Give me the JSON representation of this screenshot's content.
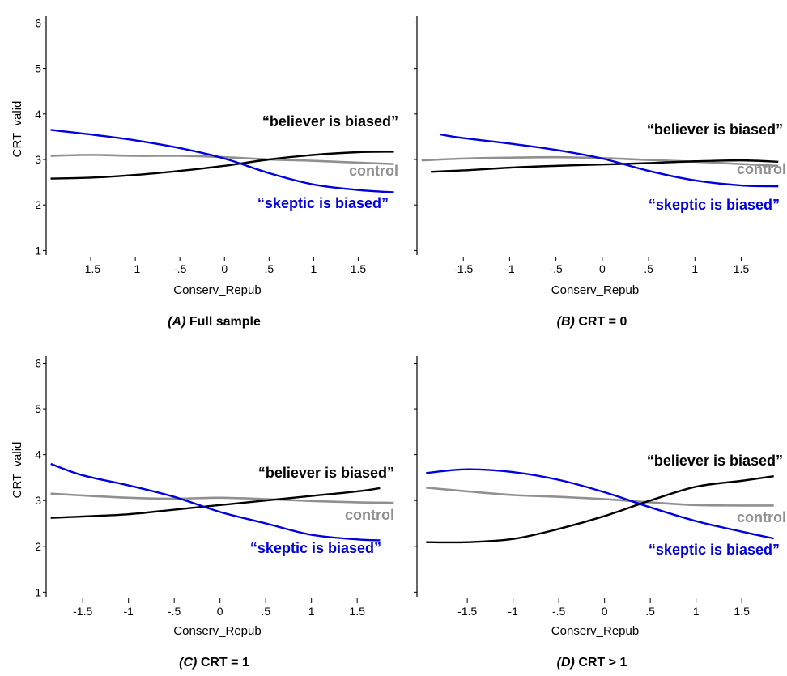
{
  "chart_data": [
    {
      "type": "line",
      "caption_label": "(A)",
      "caption_text": "Full sample",
      "xlabel": "Conserv_Repub",
      "ylabel": "CRT_valid",
      "xlim": [
        -2.0,
        1.95
      ],
      "ylim": [
        0.9,
        6.15
      ],
      "x_ticks": [
        -1.5,
        -1,
        -0.5,
        0,
        0.5,
        1,
        1.5
      ],
      "x_tick_labels": [
        "-1.5",
        "-1",
        "-.5",
        "0",
        ".5",
        "1",
        "1.5"
      ],
      "y_ticks": [
        1,
        2,
        3,
        4,
        5,
        6
      ],
      "y_tick_labels": [
        "1",
        "2",
        "3",
        "4",
        "5",
        "6"
      ],
      "series": [
        {
          "name": "control",
          "color": "#909090",
          "x": [
            -1.95,
            -1.5,
            -1,
            -0.5,
            0,
            0.5,
            1,
            1.5,
            1.9
          ],
          "y": [
            3.08,
            3.1,
            3.08,
            3.08,
            3.05,
            3.0,
            2.97,
            2.93,
            2.9
          ]
        },
        {
          "name": "“believer is biased”",
          "color": "#000000",
          "x": [
            -1.95,
            -1.5,
            -1,
            -0.5,
            0,
            0.5,
            1,
            1.5,
            1.9
          ],
          "y": [
            2.58,
            2.6,
            2.66,
            2.75,
            2.86,
            3.0,
            3.1,
            3.16,
            3.17
          ]
        },
        {
          "name": "“skeptic is biased”",
          "color": "#0000dd",
          "x": [
            -1.95,
            -1.5,
            -1,
            -0.5,
            0,
            0.5,
            1,
            1.5,
            1.9
          ],
          "y": [
            3.65,
            3.55,
            3.42,
            3.25,
            3.02,
            2.7,
            2.45,
            2.33,
            2.28
          ]
        }
      ]
    },
    {
      "type": "line",
      "caption_label": "(B)",
      "caption_text": "CRT = 0",
      "xlabel": "Conserv_Repub",
      "ylabel": "",
      "xlim": [
        -2.0,
        1.95
      ],
      "ylim": [
        0.9,
        6.15
      ],
      "x_ticks": [
        -1.5,
        -1,
        -0.5,
        0,
        0.5,
        1,
        1.5
      ],
      "x_tick_labels": [
        "-1.5",
        "-1",
        "-.5",
        "0",
        ".5",
        "1",
        "1.5"
      ],
      "y_ticks": [
        1,
        2,
        3,
        4,
        5,
        6
      ],
      "y_tick_labels": [],
      "series": [
        {
          "name": "control",
          "color": "#909090",
          "x": [
            -1.95,
            -1.5,
            -1,
            -0.5,
            0,
            0.5,
            1,
            1.5,
            1.9
          ],
          "y": [
            2.98,
            3.02,
            3.04,
            3.05,
            3.03,
            2.99,
            2.95,
            2.9,
            2.86
          ]
        },
        {
          "name": "“believer is biased”",
          "color": "#000000",
          "x": [
            -1.85,
            -1.5,
            -1,
            -0.5,
            0,
            0.5,
            1,
            1.5,
            1.9
          ],
          "y": [
            2.73,
            2.76,
            2.82,
            2.86,
            2.89,
            2.92,
            2.96,
            2.98,
            2.95
          ]
        },
        {
          "name": "“skeptic is biased”",
          "color": "#0000dd",
          "x": [
            -1.75,
            -1.5,
            -1,
            -0.5,
            0,
            0.5,
            1,
            1.5,
            1.9
          ],
          "y": [
            3.55,
            3.47,
            3.35,
            3.21,
            3.02,
            2.75,
            2.54,
            2.43,
            2.41
          ]
        }
      ]
    },
    {
      "type": "line",
      "caption_label": "(C)",
      "caption_text": "CRT = 1",
      "xlabel": "Conserv_Repub",
      "ylabel": "CRT_valid",
      "xlim": [
        -1.9,
        1.95
      ],
      "ylim": [
        0.9,
        6.15
      ],
      "x_ticks": [
        -1.5,
        -1,
        -0.5,
        0,
        0.5,
        1,
        1.5
      ],
      "x_tick_labels": [
        "-1.5",
        "-1",
        "-.5",
        "0",
        ".5",
        "1",
        "1.5"
      ],
      "y_ticks": [
        1,
        2,
        3,
        4,
        5,
        6
      ],
      "y_tick_labels": [
        "1",
        "2",
        "3",
        "4",
        "5",
        "6"
      ],
      "series": [
        {
          "name": "control",
          "color": "#909090",
          "x": [
            -1.85,
            -1.5,
            -1,
            -0.5,
            0,
            0.5,
            1,
            1.5,
            1.9
          ],
          "y": [
            3.15,
            3.11,
            3.06,
            3.04,
            3.06,
            3.03,
            2.99,
            2.96,
            2.95
          ]
        },
        {
          "name": "“believer is biased”",
          "color": "#000000",
          "x": [
            -1.85,
            -1.5,
            -1,
            -0.5,
            0,
            0.5,
            1,
            1.5,
            1.75
          ],
          "y": [
            2.62,
            2.65,
            2.7,
            2.8,
            2.9,
            3.0,
            3.1,
            3.2,
            3.27
          ]
        },
        {
          "name": "“skeptic is biased”",
          "color": "#0000dd",
          "x": [
            -1.85,
            -1.5,
            -1,
            -0.5,
            0,
            0.5,
            1,
            1.5,
            1.75
          ],
          "y": [
            3.8,
            3.55,
            3.33,
            3.08,
            2.75,
            2.5,
            2.25,
            2.15,
            2.13
          ]
        }
      ]
    },
    {
      "type": "line",
      "caption_label": "(D)",
      "caption_text": "CRT > 1",
      "xlabel": "Conserv_Repub",
      "ylabel": "",
      "xlim": [
        -2.05,
        1.95
      ],
      "ylim": [
        0.9,
        6.15
      ],
      "x_ticks": [
        -1.5,
        -1,
        -0.5,
        0,
        0.5,
        1,
        1.5
      ],
      "x_tick_labels": [
        "-1.5",
        "-1",
        "-.5",
        "0",
        ".5",
        "1",
        "1.5"
      ],
      "y_ticks": [
        1,
        2,
        3,
        4,
        5,
        6
      ],
      "y_tick_labels": [],
      "series": [
        {
          "name": "control",
          "color": "#909090",
          "x": [
            -1.95,
            -1.5,
            -1,
            -0.5,
            0,
            0.5,
            1,
            1.5,
            1.85
          ],
          "y": [
            3.28,
            3.2,
            3.12,
            3.08,
            3.03,
            2.96,
            2.9,
            2.89,
            2.89
          ]
        },
        {
          "name": "“believer is biased”",
          "color": "#000000",
          "x": [
            -1.95,
            -1.5,
            -1,
            -0.5,
            0,
            0.5,
            1,
            1.5,
            1.85
          ],
          "y": [
            2.09,
            2.09,
            2.16,
            2.38,
            2.66,
            3.0,
            3.3,
            3.43,
            3.53
          ]
        },
        {
          "name": "“skeptic is biased”",
          "color": "#0000dd",
          "x": [
            -1.95,
            -1.5,
            -1,
            -0.5,
            0,
            0.5,
            1,
            1.5,
            1.85
          ],
          "y": [
            3.6,
            3.68,
            3.62,
            3.45,
            3.18,
            2.85,
            2.55,
            2.32,
            2.17
          ]
        }
      ]
    }
  ]
}
